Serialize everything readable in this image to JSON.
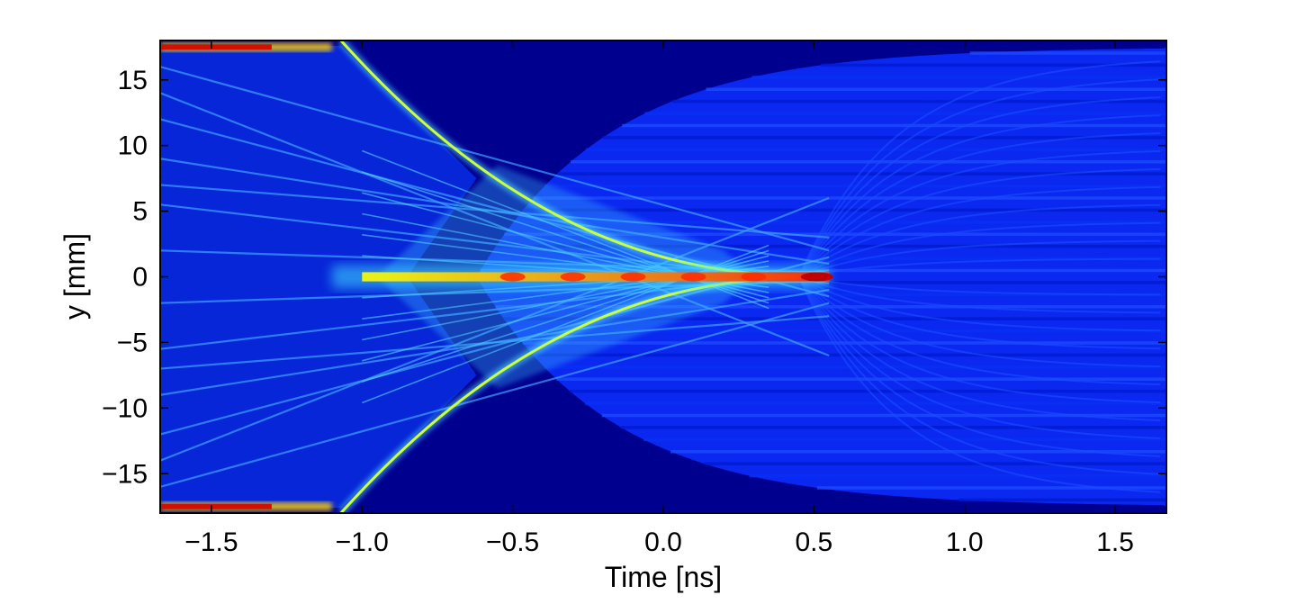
{
  "chart_data": {
    "type": "heatmap",
    "title": "",
    "xlabel": "Time [ns]",
    "ylabel": "y [mm]",
    "xlim": [
      -1.67,
      1.67
    ],
    "ylim": [
      -18,
      18
    ],
    "x_ticks": [
      -1.5,
      -1.0,
      -0.5,
      0.0,
      0.5,
      1.0,
      1.5
    ],
    "x_tick_labels": [
      "−1.5",
      "−1.0",
      "−0.5",
      "0.0",
      "0.5",
      "1.0",
      "1.5"
    ],
    "y_ticks": [
      15,
      10,
      5,
      0,
      -5,
      -10,
      -15
    ],
    "y_tick_labels": [
      "15",
      "10",
      "5",
      "0",
      "−5",
      "−10",
      "−15"
    ],
    "colormap": "jet",
    "background_color": "#00008f",
    "features": {
      "focus_point": {
        "time_ns": 0.55,
        "y_mm": 0
      },
      "caustic_start": {
        "time_ns": -1.07,
        "y_mm": 18
      },
      "side_bands_end_time_ns": -1.1
    }
  }
}
